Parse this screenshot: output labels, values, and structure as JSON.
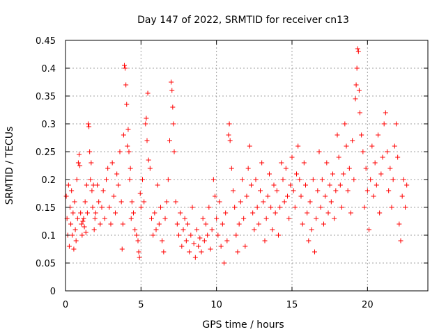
{
  "chart_data": {
    "type": "scatter",
    "title": "Day 147 of 2022, SRMTID for receiver cn13",
    "xlabel": "GPS time / hours",
    "ylabel": "SRMTID / TECUs",
    "xlim": [
      0,
      24
    ],
    "ylim": [
      0,
      0.45
    ],
    "xticks": [
      0,
      5,
      10,
      15,
      20
    ],
    "yticks": [
      0,
      0.05,
      0.1,
      0.15,
      0.2,
      0.25,
      0.3,
      0.35,
      0.4,
      0.45
    ],
    "xtick_labels": [
      "0",
      "5",
      "10",
      "15",
      "20"
    ],
    "ytick_labels": [
      "0",
      "0.05",
      "0.1",
      "0.15",
      "0.2",
      "0.25",
      "0.3",
      "0.35",
      "0.4",
      "0.45"
    ],
    "grid": true,
    "marker": "+",
    "color": "#ff0000",
    "series": [
      {
        "name": "SRMTID",
        "points": [
          [
            0.05,
            0.17
          ],
          [
            0.1,
            0.13
          ],
          [
            0.15,
            0.1
          ],
          [
            0.2,
            0.19
          ],
          [
            0.25,
            0.08
          ],
          [
            0.3,
            0.15
          ],
          [
            0.35,
            0.12
          ],
          [
            0.4,
            0.18
          ],
          [
            0.45,
            0.1
          ],
          [
            0.5,
            0.14
          ],
          [
            0.55,
            0.075
          ],
          [
            0.6,
            0.16
          ],
          [
            0.65,
            0.11
          ],
          [
            0.7,
            0.09
          ],
          [
            0.75,
            0.2
          ],
          [
            0.8,
            0.13
          ],
          [
            0.85,
            0.23
          ],
          [
            0.9,
            0.245
          ],
          [
            0.95,
            0.225
          ],
          [
            1.0,
            0.14
          ],
          [
            1.05,
            0.12
          ],
          [
            1.1,
            0.1
          ],
          [
            1.15,
            0.125
          ],
          [
            1.2,
            0.13
          ],
          [
            1.25,
            0.115
          ],
          [
            1.3,
            0.16
          ],
          [
            1.35,
            0.105
          ],
          [
            1.4,
            0.19
          ],
          [
            1.45,
            0.14
          ],
          [
            1.5,
            0.3
          ],
          [
            1.55,
            0.295
          ],
          [
            1.6,
            0.25
          ],
          [
            1.65,
            0.2
          ],
          [
            1.7,
            0.23
          ],
          [
            1.75,
            0.18
          ],
          [
            1.8,
            0.15
          ],
          [
            1.85,
            0.19
          ],
          [
            1.9,
            0.11
          ],
          [
            1.95,
            0.13
          ],
          [
            2.0,
            0.14
          ],
          [
            2.1,
            0.19
          ],
          [
            2.2,
            0.16
          ],
          [
            2.3,
            0.12
          ],
          [
            2.4,
            0.15
          ],
          [
            2.5,
            0.18
          ],
          [
            2.6,
            0.13
          ],
          [
            2.7,
            0.2
          ],
          [
            2.8,
            0.22
          ],
          [
            2.9,
            0.15
          ],
          [
            3.0,
            0.12
          ],
          [
            3.1,
            0.23
          ],
          [
            3.2,
            0.17
          ],
          [
            3.3,
            0.14
          ],
          [
            3.4,
            0.21
          ],
          [
            3.5,
            0.19
          ],
          [
            3.6,
            0.25
          ],
          [
            3.7,
            0.16
          ],
          [
            3.75,
            0.075
          ],
          [
            3.8,
            0.12
          ],
          [
            3.85,
            0.28
          ],
          [
            3.9,
            0.405
          ],
          [
            3.95,
            0.4
          ],
          [
            4.0,
            0.37
          ],
          [
            4.05,
            0.335
          ],
          [
            4.1,
            0.26
          ],
          [
            4.15,
            0.29
          ],
          [
            4.2,
            0.25
          ],
          [
            4.25,
            0.2
          ],
          [
            4.3,
            0.22
          ],
          [
            4.35,
            0.13
          ],
          [
            4.4,
            0.16
          ],
          [
            4.5,
            0.14
          ],
          [
            4.6,
            0.11
          ],
          [
            4.7,
            0.1
          ],
          [
            4.8,
            0.09
          ],
          [
            4.85,
            0.07
          ],
          [
            4.9,
            0.06
          ],
          [
            4.95,
            0.175
          ],
          [
            5.0,
            0.15
          ],
          [
            5.1,
            0.2
          ],
          [
            5.2,
            0.16
          ],
          [
            5.3,
            0.3
          ],
          [
            5.35,
            0.31
          ],
          [
            5.4,
            0.27
          ],
          [
            5.45,
            0.355
          ],
          [
            5.5,
            0.235
          ],
          [
            5.6,
            0.22
          ],
          [
            5.7,
            0.13
          ],
          [
            5.8,
            0.1
          ],
          [
            5.9,
            0.14
          ],
          [
            6.0,
            0.11
          ],
          [
            6.1,
            0.19
          ],
          [
            6.2,
            0.12
          ],
          [
            6.3,
            0.15
          ],
          [
            6.4,
            0.09
          ],
          [
            6.5,
            0.07
          ],
          [
            6.6,
            0.13
          ],
          [
            6.7,
            0.16
          ],
          [
            6.8,
            0.2
          ],
          [
            6.9,
            0.27
          ],
          [
            7.0,
            0.375
          ],
          [
            7.05,
            0.36
          ],
          [
            7.1,
            0.33
          ],
          [
            7.15,
            0.3
          ],
          [
            7.2,
            0.25
          ],
          [
            7.3,
            0.16
          ],
          [
            7.4,
            0.12
          ],
          [
            7.5,
            0.1
          ],
          [
            7.6,
            0.14
          ],
          [
            7.7,
            0.08
          ],
          [
            7.8,
            0.11
          ],
          [
            7.9,
            0.13
          ],
          [
            8.0,
            0.09
          ],
          [
            8.1,
            0.12
          ],
          [
            8.2,
            0.07
          ],
          [
            8.3,
            0.1
          ],
          [
            8.4,
            0.15
          ],
          [
            8.5,
            0.085
          ],
          [
            8.6,
            0.06
          ],
          [
            8.7,
            0.11
          ],
          [
            8.8,
            0.08
          ],
          [
            8.9,
            0.095
          ],
          [
            9.0,
            0.07
          ],
          [
            9.1,
            0.13
          ],
          [
            9.2,
            0.09
          ],
          [
            9.3,
            0.12
          ],
          [
            9.4,
            0.1
          ],
          [
            9.5,
            0.15
          ],
          [
            9.6,
            0.075
          ],
          [
            9.7,
            0.11
          ],
          [
            9.8,
            0.2
          ],
          [
            9.9,
            0.17
          ],
          [
            10.0,
            0.13
          ],
          [
            10.1,
            0.1
          ],
          [
            10.2,
            0.16
          ],
          [
            10.3,
            0.08
          ],
          [
            10.4,
            0.12
          ],
          [
            10.5,
            0.05
          ],
          [
            10.6,
            0.14
          ],
          [
            10.7,
            0.09
          ],
          [
            10.8,
            0.28
          ],
          [
            10.85,
            0.3
          ],
          [
            10.9,
            0.27
          ],
          [
            11.0,
            0.22
          ],
          [
            11.1,
            0.18
          ],
          [
            11.2,
            0.15
          ],
          [
            11.3,
            0.1
          ],
          [
            11.4,
            0.07
          ],
          [
            11.5,
            0.12
          ],
          [
            11.6,
            0.16
          ],
          [
            11.7,
            0.2
          ],
          [
            11.8,
            0.13
          ],
          [
            11.9,
            0.08
          ],
          [
            12.0,
            0.17
          ],
          [
            12.1,
            0.22
          ],
          [
            12.2,
            0.26
          ],
          [
            12.3,
            0.19
          ],
          [
            12.4,
            0.14
          ],
          [
            12.5,
            0.11
          ],
          [
            12.6,
            0.2
          ],
          [
            12.7,
            0.15
          ],
          [
            12.8,
            0.12
          ],
          [
            12.9,
            0.18
          ],
          [
            13.0,
            0.23
          ],
          [
            13.1,
            0.16
          ],
          [
            13.2,
            0.09
          ],
          [
            13.3,
            0.13
          ],
          [
            13.4,
            0.17
          ],
          [
            13.5,
            0.21
          ],
          [
            13.6,
            0.15
          ],
          [
            13.7,
            0.11
          ],
          [
            13.8,
            0.19
          ],
          [
            13.9,
            0.14
          ],
          [
            14.0,
            0.18
          ],
          [
            14.1,
            0.1
          ],
          [
            14.2,
            0.15
          ],
          [
            14.3,
            0.23
          ],
          [
            14.4,
            0.2
          ],
          [
            14.5,
            0.16
          ],
          [
            14.6,
            0.22
          ],
          [
            14.7,
            0.17
          ],
          [
            14.8,
            0.13
          ],
          [
            14.9,
            0.19
          ],
          [
            15.0,
            0.24
          ],
          [
            15.1,
            0.18
          ],
          [
            15.2,
            0.15
          ],
          [
            15.3,
            0.21
          ],
          [
            15.4,
            0.26
          ],
          [
            15.5,
            0.2
          ],
          [
            15.6,
            0.17
          ],
          [
            15.7,
            0.12
          ],
          [
            15.8,
            0.23
          ],
          [
            15.9,
            0.19
          ],
          [
            16.0,
            0.14
          ],
          [
            16.1,
            0.09
          ],
          [
            16.2,
            0.16
          ],
          [
            16.3,
            0.11
          ],
          [
            16.4,
            0.2
          ],
          [
            16.5,
            0.07
          ],
          [
            16.6,
            0.13
          ],
          [
            16.7,
            0.18
          ],
          [
            16.8,
            0.25
          ],
          [
            16.9,
            0.15
          ],
          [
            17.0,
            0.2
          ],
          [
            17.1,
            0.12
          ],
          [
            17.2,
            0.17
          ],
          [
            17.3,
            0.23
          ],
          [
            17.4,
            0.14
          ],
          [
            17.5,
            0.19
          ],
          [
            17.6,
            0.16
          ],
          [
            17.7,
            0.21
          ],
          [
            17.8,
            0.13
          ],
          [
            17.9,
            0.18
          ],
          [
            18.0,
            0.28
          ],
          [
            18.1,
            0.24
          ],
          [
            18.2,
            0.19
          ],
          [
            18.3,
            0.15
          ],
          [
            18.4,
            0.21
          ],
          [
            18.5,
            0.3
          ],
          [
            18.6,
            0.26
          ],
          [
            18.7,
            0.18
          ],
          [
            18.8,
            0.22
          ],
          [
            18.9,
            0.14
          ],
          [
            19.0,
            0.27
          ],
          [
            19.1,
            0.2
          ],
          [
            19.2,
            0.345
          ],
          [
            19.25,
            0.37
          ],
          [
            19.3,
            0.4
          ],
          [
            19.35,
            0.435
          ],
          [
            19.4,
            0.43
          ],
          [
            19.45,
            0.36
          ],
          [
            19.5,
            0.32
          ],
          [
            19.6,
            0.28
          ],
          [
            19.7,
            0.25
          ],
          [
            19.8,
            0.15
          ],
          [
            19.9,
            0.22
          ],
          [
            20.0,
            0.18
          ],
          [
            20.1,
            0.11
          ],
          [
            20.2,
            0.2
          ],
          [
            20.3,
            0.26
          ],
          [
            20.4,
            0.17
          ],
          [
            20.5,
            0.23
          ],
          [
            20.6,
            0.19
          ],
          [
            20.7,
            0.28
          ],
          [
            20.8,
            0.14
          ],
          [
            20.9,
            0.21
          ],
          [
            21.0,
            0.24
          ],
          [
            21.1,
            0.3
          ],
          [
            21.2,
            0.32
          ],
          [
            21.3,
            0.25
          ],
          [
            21.4,
            0.18
          ],
          [
            21.5,
            0.22
          ],
          [
            21.6,
            0.15
          ],
          [
            21.7,
            0.2
          ],
          [
            21.8,
            0.26
          ],
          [
            21.9,
            0.3
          ],
          [
            22.0,
            0.24
          ],
          [
            22.1,
            0.12
          ],
          [
            22.2,
            0.09
          ],
          [
            22.3,
            0.17
          ],
          [
            22.4,
            0.2
          ],
          [
            22.5,
            0.15
          ],
          [
            22.6,
            0.19
          ]
        ]
      }
    ]
  }
}
